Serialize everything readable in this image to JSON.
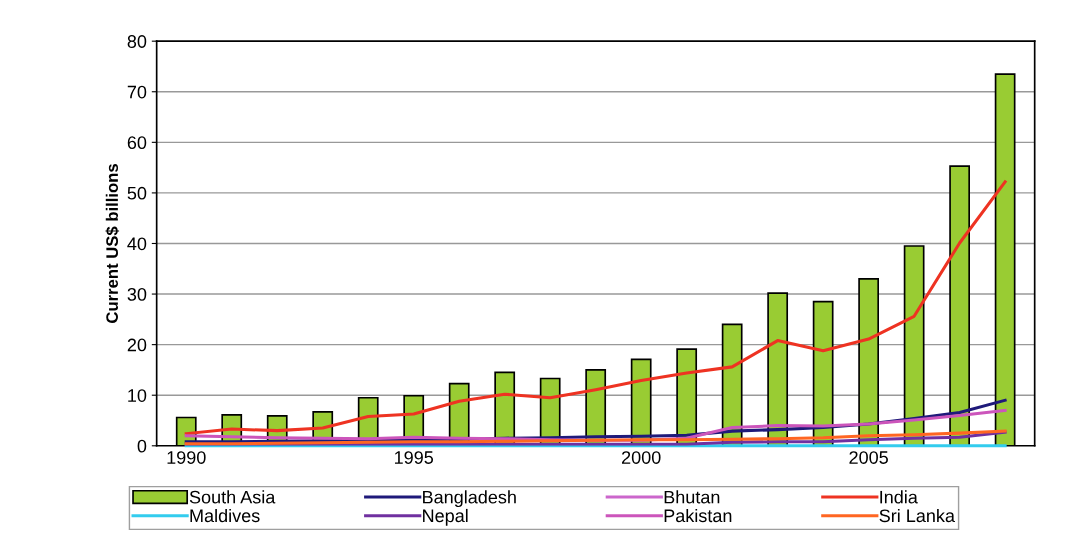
{
  "chart_data": {
    "type": "bar",
    "ylabel": "Current US$ billions",
    "categories": [
      "1990",
      null,
      null,
      null,
      null,
      "1995",
      null,
      null,
      null,
      null,
      "2000",
      null,
      null,
      null,
      null,
      "2005",
      null,
      null,
      null
    ],
    "ylim": [
      0,
      80
    ],
    "yticks": [
      0,
      10,
      20,
      30,
      40,
      50,
      60,
      70,
      80
    ],
    "grid": "y",
    "legend": "bottom",
    "series": [
      {
        "name": "South Asia",
        "color": "#99cc33",
        "values": [
          5.6,
          6.1,
          5.9,
          6.7,
          9.5,
          9.9,
          12.3,
          14.5,
          13.3,
          15.0,
          17.1,
          19.1,
          24.0,
          30.2,
          28.5,
          33.0,
          39.5,
          55.3,
          73.5
        ]
      },
      {
        "name": "Bangladesh",
        "type": "line",
        "color": "#1f1a7a",
        "values": [
          0.8,
          0.8,
          0.9,
          1.0,
          1.1,
          1.2,
          1.3,
          1.5,
          1.6,
          1.8,
          1.9,
          2.1,
          2.9,
          3.2,
          3.6,
          4.3,
          5.4,
          6.6,
          9.0
        ]
      },
      {
        "name": "Bhutan",
        "type": "line",
        "color": "#cc66cc",
        "values": [
          null,
          null,
          null,
          null,
          null,
          null,
          null,
          null,
          null,
          null,
          null,
          null,
          null,
          null,
          null,
          null,
          null,
          null,
          null
        ]
      },
      {
        "name": "India",
        "type": "line",
        "color": "#ee3322",
        "values": [
          2.4,
          3.3,
          3.0,
          3.5,
          5.8,
          6.3,
          8.8,
          10.2,
          9.5,
          11.1,
          12.9,
          14.4,
          15.6,
          20.8,
          18.8,
          21.1,
          25.6,
          40.1,
          52.2
        ]
      },
      {
        "name": "Maldives",
        "type": "line",
        "color": "#33ccee",
        "values": [
          0.0,
          0.0,
          0.0,
          0.0,
          0.0,
          0.0,
          0.0,
          0.0,
          0.0,
          0.0,
          0.0,
          0.0,
          0.0,
          0.0,
          0.0,
          0.0,
          0.0,
          0.0,
          0.0
        ]
      },
      {
        "name": "Nepal",
        "type": "line",
        "color": "#7030a0",
        "values": [
          0.3,
          0.3,
          0.3,
          0.3,
          0.3,
          0.3,
          0.3,
          0.3,
          0.3,
          0.3,
          0.3,
          0.3,
          0.7,
          0.8,
          0.8,
          1.2,
          1.5,
          1.7,
          2.7
        ]
      },
      {
        "name": "Pakistan",
        "type": "line",
        "color": "#cc55bb",
        "values": [
          2.0,
          1.8,
          1.6,
          1.5,
          1.4,
          1.7,
          1.5,
          1.4,
          1.2,
          1.1,
          1.1,
          1.5,
          3.6,
          4.0,
          3.9,
          4.3,
          5.1,
          6.0,
          7.0
        ]
      },
      {
        "name": "Sri Lanka",
        "type": "line",
        "color": "#ff6622",
        "values": [
          0.4,
          0.4,
          0.5,
          0.6,
          0.7,
          0.8,
          0.8,
          0.9,
          1.0,
          1.1,
          1.2,
          1.2,
          1.3,
          1.4,
          1.6,
          2.0,
          2.2,
          2.5,
          2.9
        ]
      }
    ]
  }
}
